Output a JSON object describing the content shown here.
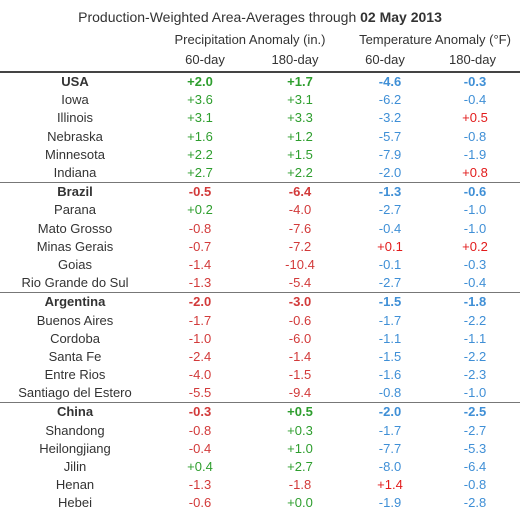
{
  "title": {
    "prefix": "Production-Weighted Area-Averages through ",
    "date": "02 May 2013"
  },
  "groups": {
    "precip": "Precipitation Anomaly (in.)",
    "temp": "Temperature Anomaly (°F)"
  },
  "columns": [
    "60-day",
    "180-day",
    "60-day",
    "180-day"
  ],
  "colors": {
    "wet": "#2e9e2e",
    "dry": "#d23a3a",
    "cool": "#3f8fd6",
    "warm": "#e21b1b"
  },
  "rows": [
    {
      "name": "USA",
      "country": true,
      "p60": "+2.0",
      "p180": "+1.7",
      "t60": "-4.6",
      "t180": "-0.3"
    },
    {
      "name": "Iowa",
      "p60": "+3.6",
      "p180": "+3.1",
      "t60": "-6.2",
      "t180": "-0.4"
    },
    {
      "name": "Illinois",
      "p60": "+3.1",
      "p180": "+3.3",
      "t60": "-3.2",
      "t180": "+0.5"
    },
    {
      "name": "Nebraska",
      "p60": "+1.6",
      "p180": "+1.2",
      "t60": "-5.7",
      "t180": "-0.8"
    },
    {
      "name": "Minnesota",
      "p60": "+2.2",
      "p180": "+1.5",
      "t60": "-7.9",
      "t180": "-1.9"
    },
    {
      "name": "Indiana",
      "p60": "+2.7",
      "p180": "+2.2",
      "t60": "-2.0",
      "t180": "+0.8"
    },
    {
      "name": "Brazil",
      "country": true,
      "p60": "-0.5",
      "p180": "-6.4",
      "t60": "-1.3",
      "t180": "-0.6"
    },
    {
      "name": "Parana",
      "p60": "+0.2",
      "p180": "-4.0",
      "t60": "-2.7",
      "t180": "-1.0"
    },
    {
      "name": "Mato Grosso",
      "p60": "-0.8",
      "p180": "-7.6",
      "t60": "-0.4",
      "t180": "-1.0"
    },
    {
      "name": "Minas Gerais",
      "p60": "-0.7",
      "p180": "-7.2",
      "t60": "+0.1",
      "t180": "+0.2"
    },
    {
      "name": "Goias",
      "p60": "-1.4",
      "p180": "-10.4",
      "t60": "-0.1",
      "t180": "-0.3"
    },
    {
      "name": "Rio Grande do Sul",
      "p60": "-1.3",
      "p180": "-5.4",
      "t60": "-2.7",
      "t180": "-0.4"
    },
    {
      "name": "Argentina",
      "country": true,
      "p60": "-2.0",
      "p180": "-3.0",
      "t60": "-1.5",
      "t180": "-1.8"
    },
    {
      "name": "Buenos Aires",
      "p60": "-1.7",
      "p180": "-0.6",
      "t60": "-1.7",
      "t180": "-2.2"
    },
    {
      "name": "Cordoba",
      "p60": "-1.0",
      "p180": "-6.0",
      "t60": "-1.1",
      "t180": "-1.1"
    },
    {
      "name": "Santa Fe",
      "p60": "-2.4",
      "p180": "-1.4",
      "t60": "-1.5",
      "t180": "-2.2"
    },
    {
      "name": "Entre Rios",
      "p60": "-4.0",
      "p180": "-1.5",
      "t60": "-1.6",
      "t180": "-2.3"
    },
    {
      "name": "Santiago del Estero",
      "p60": "-5.5",
      "p180": "-9.4",
      "t60": "-0.8",
      "t180": "-1.0"
    },
    {
      "name": "China",
      "country": true,
      "p60": "-0.3",
      "p180": "+0.5",
      "t60": "-2.0",
      "t180": "-2.5"
    },
    {
      "name": "Shandong",
      "p60": "-0.8",
      "p180": "+0.3",
      "t60": "-1.7",
      "t180": "-2.7"
    },
    {
      "name": "Heilongjiang",
      "p60": "-0.4",
      "p180": "+1.0",
      "t60": "-7.7",
      "t180": "-5.3"
    },
    {
      "name": "Jilin",
      "p60": "+0.4",
      "p180": "+2.7",
      "t60": "-8.0",
      "t180": "-6.4"
    },
    {
      "name": "Henan",
      "p60": "-1.3",
      "p180": "-1.8",
      "t60": "+1.4",
      "t180": "-0.8"
    },
    {
      "name": "Hebei",
      "p60": "-0.6",
      "p180": "+0.0",
      "t60": "-1.9",
      "t180": "-2.8"
    }
  ]
}
